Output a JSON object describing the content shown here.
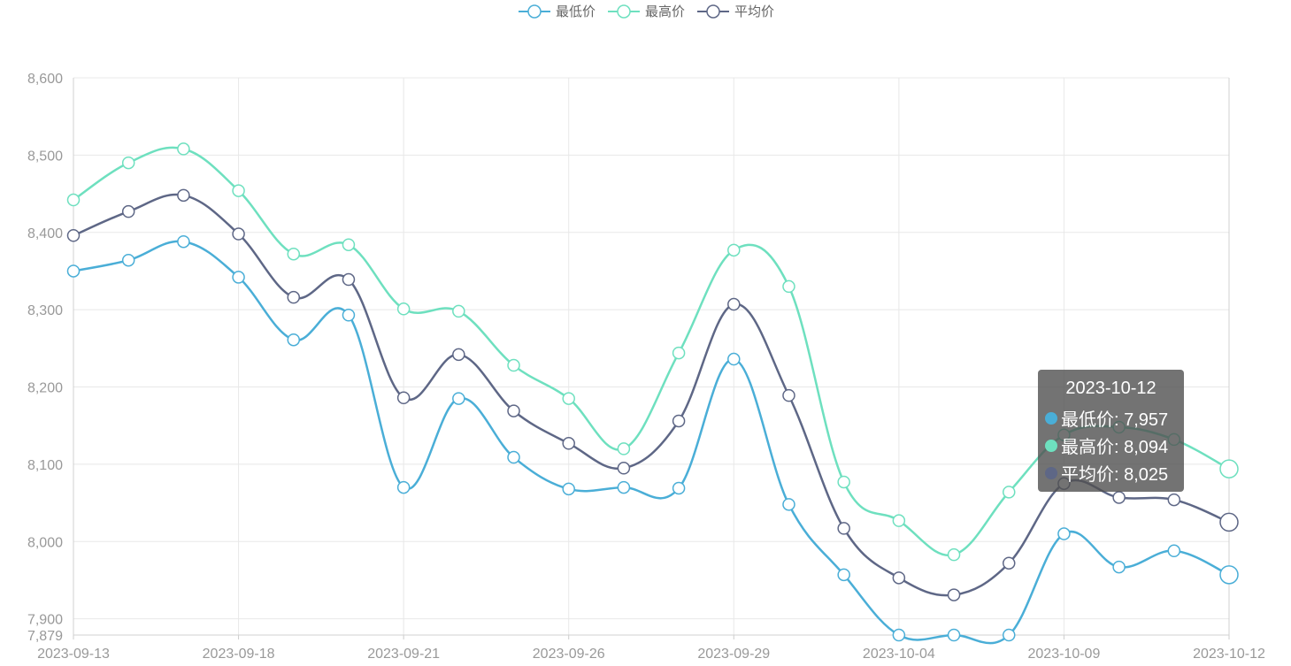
{
  "chart_data": {
    "type": "line",
    "x": [
      "2023-09-13",
      "2023-09-14",
      "2023-09-15",
      "2023-09-18",
      "2023-09-19",
      "2023-09-20",
      "2023-09-21",
      "2023-09-22",
      "2023-09-25",
      "2023-09-26",
      "2023-09-27",
      "2023-09-28",
      "2023-09-29",
      "2023-10-02",
      "2023-10-03",
      "2023-10-04",
      "2023-10-05",
      "2023-10-06",
      "2023-10-09",
      "2023-10-10",
      "2023-10-11",
      "2023-10-12"
    ],
    "xticks": [
      "2023-09-13",
      "2023-09-18",
      "2023-09-21",
      "2023-09-26",
      "2023-09-29",
      "2023-10-04",
      "2023-10-09",
      "2023-10-12"
    ],
    "yticks": [
      "7,879",
      "7,900",
      "8,000",
      "8,100",
      "8,200",
      "8,300",
      "8,400",
      "8,500",
      "8,600"
    ],
    "ylim": [
      7879,
      8600
    ],
    "grid": true,
    "legend_position": "top-center",
    "series": [
      {
        "name": "最低价",
        "color": "#4aaed7",
        "values": [
          8350,
          8364,
          8388,
          8342,
          8261,
          8293,
          8070,
          8185,
          8109,
          8068,
          8070,
          8069,
          8236,
          8048,
          7957,
          7879,
          7879,
          7879,
          8010,
          7967,
          7988,
          7957
        ]
      },
      {
        "name": "最高价",
        "color": "#6ee0bf",
        "values": [
          8442,
          8490,
          8508,
          8454,
          8372,
          8384,
          8301,
          8298,
          8228,
          8185,
          8120,
          8244,
          8377,
          8330,
          8077,
          8027,
          7983,
          8064,
          8138,
          8148,
          8132,
          8094
        ]
      },
      {
        "name": "平均价",
        "color": "#5e6786",
        "values": [
          8396,
          8427,
          8448,
          8398,
          8316,
          8339,
          8186,
          8242,
          8169,
          8127,
          8095,
          8156,
          8307,
          8189,
          8017,
          7953,
          7931,
          7972,
          8075,
          8057,
          8054,
          8025
        ]
      }
    ]
  },
  "tooltip": {
    "date": "2023-10-12",
    "rows": [
      {
        "text": "最低价: 7,957",
        "color": "#4aaed7"
      },
      {
        "text": "最高价: 8,094",
        "color": "#6ee0bf"
      },
      {
        "text": "平均价: 8,025",
        "color": "#5e6786"
      }
    ]
  }
}
